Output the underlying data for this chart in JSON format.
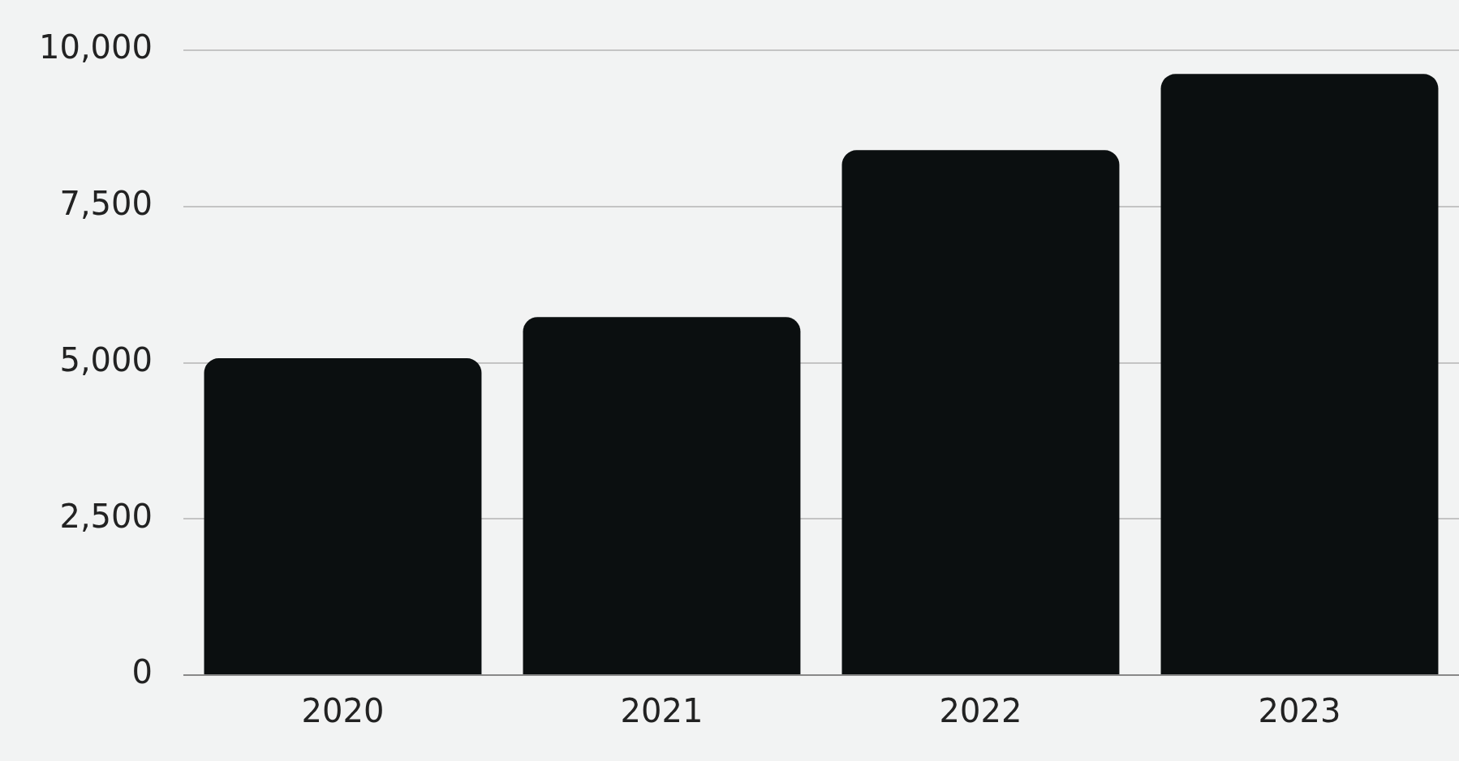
{
  "chart_data": {
    "type": "bar",
    "categories": [
      "2020",
      "2021",
      "2022",
      "2023"
    ],
    "values": [
      5070,
      5730,
      8400,
      9620
    ],
    "color": "#0b0f10",
    "ylim": [
      0,
      10000
    ],
    "yticks": [
      {
        "value": 0,
        "label": "0"
      },
      {
        "value": 2500,
        "label": "2,500"
      },
      {
        "value": 5000,
        "label": "5,000"
      },
      {
        "value": 7500,
        "label": "7,500"
      },
      {
        "value": 10000,
        "label": "10,000"
      }
    ],
    "grid": "y",
    "legend": false
  }
}
